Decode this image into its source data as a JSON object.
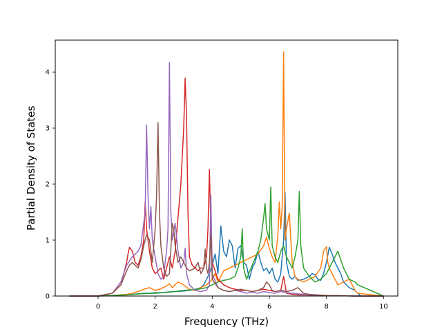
{
  "chart_data": {
    "type": "line",
    "title": "",
    "xlabel": "Frequency (THz)",
    "ylabel": "Partial Density of States",
    "xlim": [
      -1.5,
      10.5
    ],
    "ylim": [
      0,
      4.57
    ],
    "xticks": [
      0,
      2,
      4,
      6,
      8,
      10
    ],
    "yticks": [
      0,
      1,
      2,
      3,
      4
    ],
    "grid": false,
    "legend": "none",
    "series": [
      {
        "color": "#1f77b4",
        "x": [
          -1,
          0,
          0.5,
          0.8,
          1,
          1.2,
          1.4,
          1.6,
          1.8,
          2,
          2.2,
          2.4,
          2.6,
          2.8,
          3,
          3.2,
          3.4,
          3.6,
          3.7,
          3.8,
          3.9,
          4,
          4.1,
          4.2,
          4.3,
          4.4,
          4.5,
          4.6,
          4.7,
          4.8,
          4.9,
          5,
          5.1,
          5.2,
          5.3,
          5.4,
          5.5,
          5.6,
          5.7,
          5.8,
          5.9,
          6,
          6.1,
          6.2,
          6.3,
          6.4,
          6.5,
          6.55,
          6.6,
          6.7,
          6.8,
          6.9,
          7,
          7.2,
          7.4,
          7.5,
          7.6,
          7.7,
          7.8,
          7.9,
          8,
          8.1,
          8.2,
          8.3,
          8.4,
          8.5,
          8.6,
          8.8,
          9,
          9.1,
          9.2,
          10
        ],
        "y": [
          0,
          0,
          0.01,
          0.02,
          0.03,
          0.03,
          0.04,
          0.05,
          0.05,
          0.06,
          0.06,
          0.07,
          0.08,
          0.08,
          0.09,
          0.1,
          0.12,
          0.15,
          0.2,
          0.3,
          0.4,
          0.55,
          0.75,
          0.4,
          1.25,
          0.8,
          0.7,
          1.0,
          0.9,
          0.5,
          0.85,
          0.9,
          0.6,
          0.55,
          0.3,
          0.5,
          0.6,
          0.8,
          0.6,
          0.45,
          0.5,
          0.4,
          0.5,
          0.3,
          0.25,
          0.4,
          1.0,
          1.85,
          0.6,
          0.35,
          0.3,
          0.35,
          0.28,
          0.3,
          0.35,
          0.4,
          0.38,
          0.3,
          0.28,
          0.4,
          0.6,
          0.87,
          0.75,
          0.6,
          0.5,
          0.4,
          0.25,
          0.15,
          0.1,
          0.05,
          0,
          0
        ]
      },
      {
        "color": "#ff7f0e",
        "x": [
          -1,
          0,
          0.5,
          1,
          1.2,
          1.4,
          1.6,
          1.8,
          2,
          2.2,
          2.4,
          2.5,
          2.6,
          2.8,
          3,
          3.2,
          3.4,
          3.6,
          3.8,
          4,
          4.1,
          4.2,
          4.3,
          4.4,
          4.6,
          4.8,
          5,
          5.2,
          5.4,
          5.6,
          5.8,
          5.9,
          6,
          6.1,
          6.2,
          6.3,
          6.35,
          6.4,
          6.45,
          6.5,
          6.55,
          6.6,
          6.7,
          6.8,
          6.9,
          7,
          7.2,
          7.4,
          7.6,
          7.8,
          7.9,
          8,
          8.05,
          8.1,
          8.2,
          8.4,
          8.6,
          8.8,
          9,
          9.1,
          10
        ],
        "y": [
          0,
          0,
          0.01,
          0.03,
          0.05,
          0.08,
          0.12,
          0.15,
          0.1,
          0.13,
          0.18,
          0.22,
          0.15,
          0.25,
          0.2,
          0.12,
          0.1,
          0.15,
          0.2,
          0.3,
          0.4,
          0.25,
          0.35,
          0.45,
          0.5,
          0.55,
          0.6,
          0.65,
          0.7,
          0.75,
          0.9,
          1.05,
          0.85,
          0.7,
          0.6,
          1.1,
          1.68,
          1.2,
          1.6,
          4.36,
          1.0,
          1.2,
          1.48,
          0.6,
          0.35,
          0.3,
          0.25,
          0.3,
          0.35,
          0.5,
          0.8,
          0.88,
          0.6,
          0.5,
          0.4,
          0.2,
          0.25,
          0.3,
          0.1,
          0.05,
          0
        ]
      },
      {
        "color": "#2ca02c",
        "x": [
          -1,
          0,
          1,
          1.5,
          2,
          2.5,
          3,
          3.5,
          3.8,
          4,
          4.2,
          4.4,
          4.6,
          4.8,
          4.9,
          5,
          5.05,
          5.1,
          5.2,
          5.4,
          5.6,
          5.7,
          5.8,
          5.85,
          5.9,
          6,
          6.05,
          6.1,
          6.2,
          6.3,
          6.4,
          6.5,
          6.6,
          6.7,
          6.8,
          6.9,
          7,
          7.05,
          7.1,
          7.2,
          7.4,
          7.6,
          7.8,
          8,
          8.2,
          8.3,
          8.4,
          8.6,
          8.8,
          9,
          9.1,
          10
        ],
        "y": [
          0,
          0,
          0.02,
          0.04,
          0.05,
          0.07,
          0.1,
          0.12,
          0.15,
          0.2,
          0.25,
          0.28,
          0.3,
          0.35,
          0.5,
          0.7,
          1.2,
          0.5,
          0.3,
          0.55,
          0.8,
          1.0,
          1.4,
          1.65,
          1.2,
          1.0,
          1.95,
          0.9,
          0.7,
          0.6,
          0.8,
          0.9,
          0.7,
          0.6,
          0.5,
          0.7,
          1.0,
          1.87,
          0.9,
          0.5,
          0.35,
          0.25,
          0.3,
          0.4,
          0.6,
          0.7,
          0.8,
          0.5,
          0.3,
          0.25,
          0.2,
          0
        ]
      },
      {
        "color": "#d62728",
        "x": [
          -1,
          0,
          0.5,
          0.8,
          1,
          1.05,
          1.1,
          1.2,
          1.3,
          1.4,
          1.5,
          1.6,
          1.65,
          1.7,
          1.8,
          1.9,
          2,
          2.1,
          2.2,
          2.3,
          2.4,
          2.5,
          2.6,
          2.7,
          2.8,
          2.9,
          3,
          3.05,
          3.1,
          3.15,
          3.2,
          3.3,
          3.4,
          3.5,
          3.6,
          3.7,
          3.8,
          3.85,
          3.9,
          3.95,
          4,
          4.2,
          4.4,
          4.6,
          4.8,
          5,
          5.2,
          5.4,
          5.6,
          5.8,
          6,
          6.2,
          6.4,
          6.5,
          6.6,
          6.8,
          7,
          7.2,
          8,
          9,
          10
        ],
        "y": [
          0,
          0,
          0.05,
          0.2,
          0.6,
          0.75,
          0.87,
          0.8,
          0.6,
          0.55,
          0.7,
          1.0,
          1.68,
          1.2,
          0.8,
          0.5,
          0.4,
          0.45,
          0.5,
          0.3,
          0.5,
          0.7,
          0.5,
          0.8,
          1.4,
          2.0,
          3.0,
          3.89,
          3.2,
          1.5,
          0.7,
          0.55,
          0.5,
          0.45,
          0.5,
          0.5,
          0.7,
          1.2,
          2.26,
          1.2,
          0.6,
          0.3,
          0.2,
          0.15,
          0.12,
          0.1,
          0.1,
          0.08,
          0.1,
          0.12,
          0.1,
          0.08,
          0.1,
          0.35,
          0.05,
          0.03,
          0.02,
          0.02,
          0.01,
          0,
          0
        ]
      },
      {
        "color": "#9467bd",
        "x": [
          -1,
          0,
          0.5,
          0.8,
          1,
          1.2,
          1.3,
          1.4,
          1.5,
          1.6,
          1.65,
          1.7,
          1.75,
          1.8,
          1.85,
          1.9,
          2,
          2.1,
          2.2,
          2.3,
          2.35,
          2.4,
          2.45,
          2.5,
          2.55,
          2.6,
          2.7,
          2.8,
          2.9,
          3,
          3.05,
          3.1,
          3.2,
          3.4,
          3.6,
          3.8,
          3.9,
          3.95,
          4,
          4.2,
          4.4,
          4.6,
          4.8,
          5,
          5.2,
          5.4,
          5.6,
          5.8,
          6,
          6.2,
          6.4,
          6.6,
          6.8,
          7,
          7.2,
          7.4,
          8,
          9,
          10
        ],
        "y": [
          0,
          0,
          0.05,
          0.25,
          0.55,
          0.7,
          0.75,
          0.8,
          0.9,
          1.3,
          1.5,
          3.05,
          1.8,
          1.2,
          1.6,
          1.0,
          0.7,
          0.4,
          0.3,
          0.35,
          0.6,
          0.8,
          1.2,
          4.17,
          1.5,
          1.0,
          1.3,
          0.8,
          0.5,
          0.6,
          0.85,
          0.4,
          0.2,
          0.1,
          0.08,
          0.1,
          0.2,
          1.8,
          0.4,
          0.15,
          0.1,
          0.08,
          0.1,
          0.08,
          0.05,
          0.07,
          0.05,
          0.08,
          0.06,
          0.05,
          0.08,
          0.06,
          0.05,
          0.04,
          0.03,
          0.02,
          0.01,
          0,
          0
        ]
      },
      {
        "color": "#8c564b",
        "x": [
          -1,
          0,
          0.5,
          0.8,
          1,
          1.1,
          1.2,
          1.3,
          1.4,
          1.5,
          1.6,
          1.7,
          1.8,
          1.9,
          2,
          2.05,
          2.1,
          2.15,
          2.2,
          2.3,
          2.4,
          2.5,
          2.6,
          2.65,
          2.7,
          2.8,
          2.9,
          3,
          3.1,
          3.2,
          3.4,
          3.5,
          3.6,
          3.7,
          3.75,
          3.8,
          3.85,
          3.9,
          3.95,
          4,
          4.2,
          4.4,
          4.6,
          4.8,
          5,
          5.2,
          5.4,
          5.6,
          5.8,
          5.9,
          6,
          6.1,
          6.2,
          6.4,
          6.6,
          6.8,
          7,
          7.2,
          7.4,
          8,
          9,
          10
        ],
        "y": [
          0,
          0,
          0.05,
          0.2,
          0.45,
          0.55,
          0.6,
          0.55,
          0.5,
          0.65,
          0.9,
          1.1,
          1.0,
          0.6,
          1.2,
          1.8,
          3.1,
          1.5,
          0.9,
          0.5,
          0.35,
          0.4,
          1.3,
          1.2,
          0.9,
          0.6,
          0.7,
          0.6,
          0.5,
          0.45,
          0.5,
          0.6,
          0.4,
          0.5,
          0.84,
          0.5,
          0.4,
          0.6,
          1.11,
          0.3,
          0.15,
          0.1,
          0.08,
          0.1,
          0.12,
          0.1,
          0.08,
          0.1,
          0.15,
          0.25,
          0.2,
          0.1,
          0.08,
          0.1,
          0.08,
          0.1,
          0.15,
          0.05,
          0.03,
          0.01,
          0,
          0
        ]
      }
    ]
  }
}
